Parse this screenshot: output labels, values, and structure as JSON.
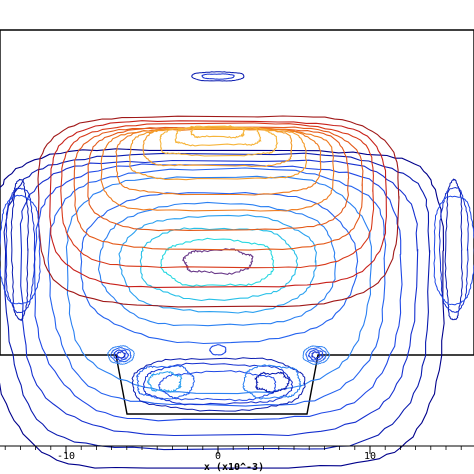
{
  "chart_data": {
    "type": "contour",
    "title": "",
    "xlabel": "x (x10^-3)",
    "ylabel": "",
    "xlim": [
      -18,
      18
    ],
    "x_ticks": [
      -10,
      0,
      10
    ],
    "x_tick_labels": [
      "-10",
      "0",
      "10"
    ],
    "grid": false,
    "legend": "none",
    "colormap": "jet",
    "levels": [
      {
        "level": 1,
        "color": "#00008b"
      },
      {
        "level": 2,
        "color": "#0a1bb0"
      },
      {
        "level": 3,
        "color": "#1530d0"
      },
      {
        "level": 4,
        "color": "#1f48e6"
      },
      {
        "level": 5,
        "color": "#2563ef"
      },
      {
        "level": 6,
        "color": "#2a80f2"
      },
      {
        "level": 7,
        "color": "#2aa0f0"
      },
      {
        "level": 8,
        "color": "#27c0e8"
      },
      {
        "level": 9,
        "color": "#2ad8e0"
      },
      {
        "level": 10,
        "color": "#6a3a8a"
      },
      {
        "level": 11,
        "color": "#a01818"
      },
      {
        "level": 12,
        "color": "#c8201a"
      },
      {
        "level": 13,
        "color": "#d83818"
      },
      {
        "level": 14,
        "color": "#e45a1a"
      },
      {
        "level": 15,
        "color": "#ee7a1e"
      },
      {
        "level": 16,
        "color": "#f39a28"
      },
      {
        "level": 17,
        "color": "#f6b43a"
      }
    ]
  }
}
